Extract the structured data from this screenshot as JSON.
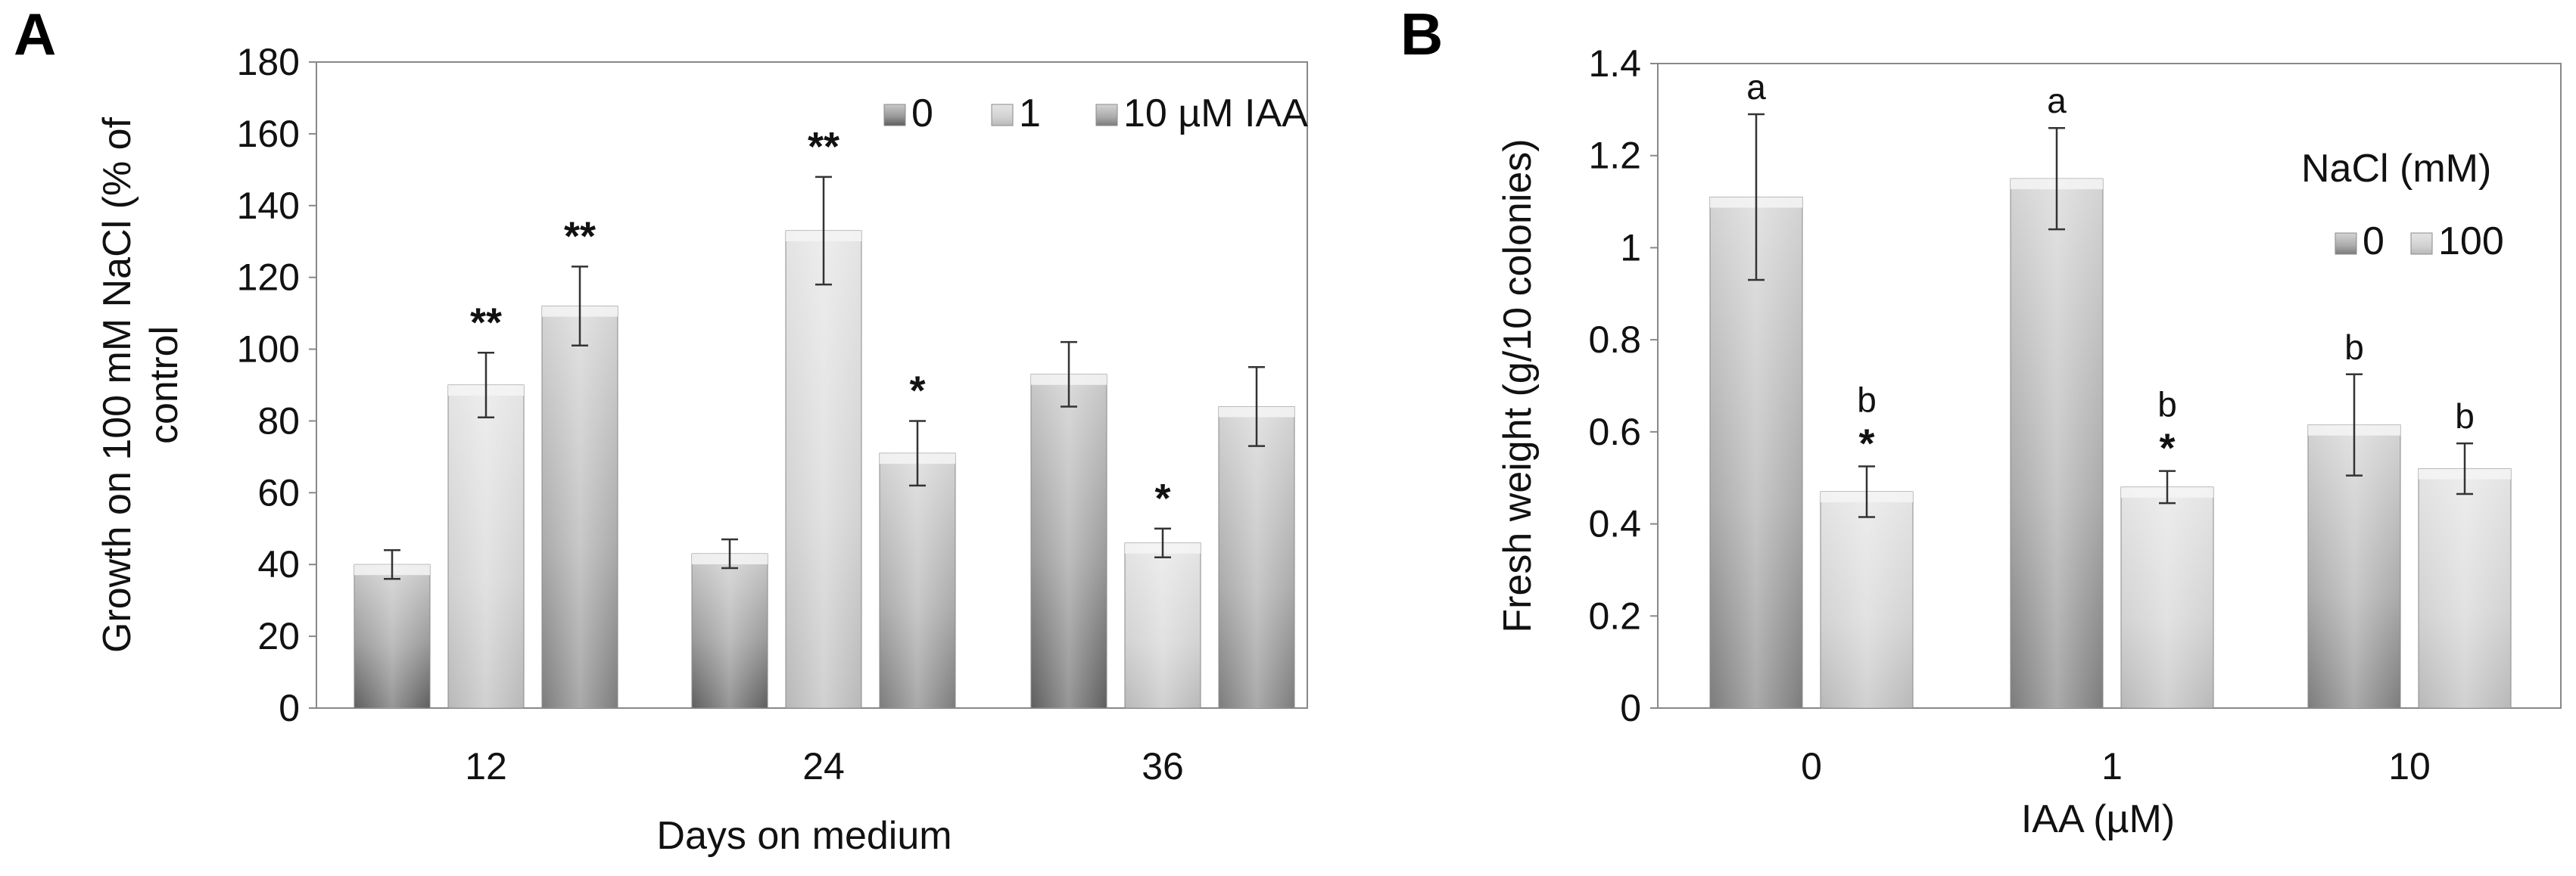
{
  "chart_data": [
    {
      "type": "bar",
      "panel_label": "A",
      "title": "",
      "categories": [
        "12",
        "24",
        "36"
      ],
      "xlabel": "Days on medium",
      "ylabel_lines": [
        "Growth on 100 mM NaCl (% of",
        "control"
      ],
      "ylim": [
        0,
        180
      ],
      "yticks": [
        0,
        20,
        40,
        60,
        80,
        100,
        120,
        140,
        160,
        180
      ],
      "legend": {
        "placement": "top-right",
        "entries": [
          "0",
          "1",
          "10 µM IAA"
        ]
      },
      "series": [
        {
          "name": "0",
          "values": [
            40,
            43,
            93
          ],
          "errors": [
            4,
            4,
            9
          ],
          "annotations": [
            "",
            "",
            ""
          ]
        },
        {
          "name": "1",
          "values": [
            90,
            133,
            46
          ],
          "errors": [
            9,
            15,
            4
          ],
          "annotations": [
            "**",
            "**",
            "*"
          ]
        },
        {
          "name": "10 µM IAA",
          "values": [
            112,
            71,
            84
          ],
          "errors": [
            11,
            9,
            11
          ],
          "annotations": [
            "**",
            "*",
            ""
          ]
        }
      ]
    },
    {
      "type": "bar",
      "panel_label": "B",
      "title": "",
      "categories": [
        "0",
        "1",
        "10"
      ],
      "xlabel": "IAA (µM)",
      "ylabel_lines": [
        "Fresh weight (g/10 colonies)"
      ],
      "ylim": [
        0,
        1.4
      ],
      "yticks": [
        "0",
        "0.2",
        "0.4",
        "0.6",
        "0.8",
        "1",
        "1.2",
        "1.4"
      ],
      "legend": {
        "placement": "top-right",
        "title": "NaCl (mM)",
        "entries": [
          "0",
          "100"
        ]
      },
      "series": [
        {
          "name": "0",
          "values": [
            1.11,
            1.15,
            0.615
          ],
          "errors": [
            0.18,
            0.11,
            0.11
          ],
          "letters": [
            "a",
            "a",
            "b"
          ],
          "annotations": [
            "",
            "",
            ""
          ]
        },
        {
          "name": "100",
          "values": [
            0.47,
            0.48,
            0.52
          ],
          "errors": [
            0.055,
            0.035,
            0.055
          ],
          "letters": [
            "b",
            "b",
            "b"
          ],
          "annotations": [
            "*",
            "*",
            ""
          ]
        }
      ]
    }
  ]
}
